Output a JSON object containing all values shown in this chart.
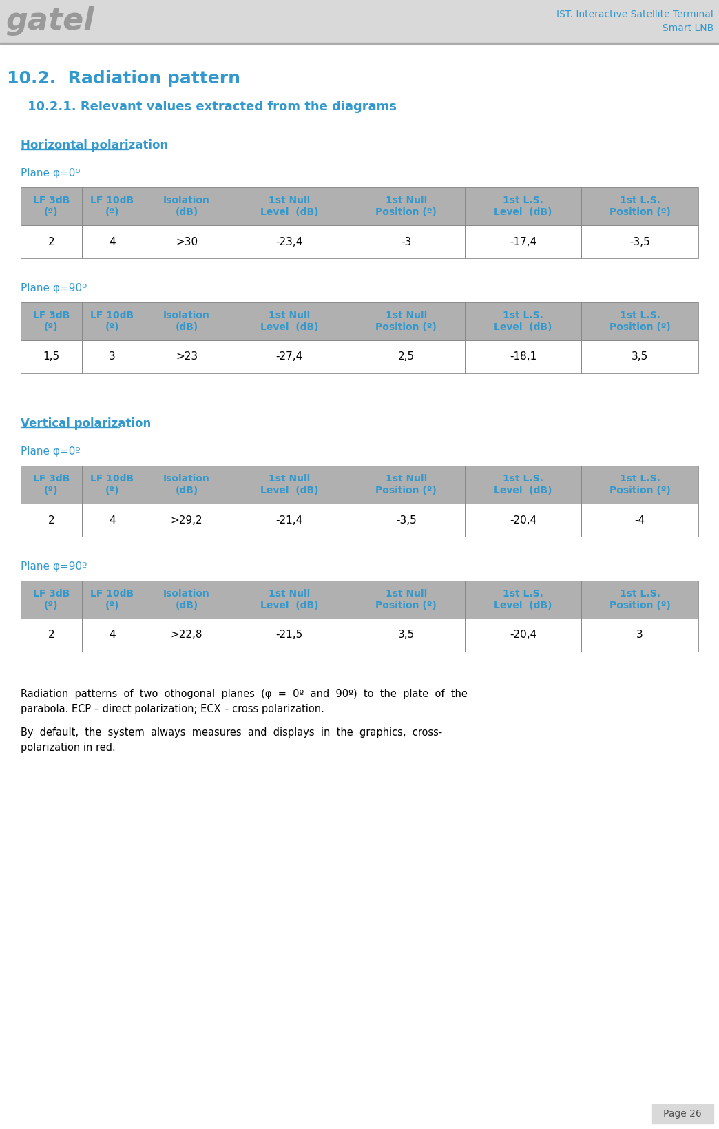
{
  "page_bg": "#ffffff",
  "header_bg": "#d9d9d9",
  "header_logo_text": "gatel",
  "header_logo_color": "#999999",
  "header_right_line1": "IST. Interactive Satellite Terminal",
  "header_right_line2": "Smart LNB",
  "header_right_color": "#3399cc",
  "title_h2": "10.2.  Radiation pattern",
  "title_h3": "10.2.1. Relevant values extracted from the diagrams",
  "section_color": "#3399cc",
  "underline_color": "#3399cc",
  "table_header_bg": "#b0b0b0",
  "table_header_text": "#3399cc",
  "table_row_bg": "#ffffff",
  "table_border_color": "#888888",
  "col_headers": [
    "LF 3dB\n(º)",
    "LF 10dB\n(º)",
    "Isolation\n(dB)",
    "1st Null\nLevel  (dB)",
    "1st Null\nPosition (º)",
    "1st L.S.\nLevel  (dB)",
    "1st L.S.\nPosition (º)"
  ],
  "sections": [
    {
      "label": "Horizontal polarization",
      "planes": [
        {
          "plane_label": "Plane φ=0º",
          "data_row": [
            "2",
            "4",
            ">30",
            "-23,4",
            "-3",
            "-17,4",
            "-3,5"
          ]
        },
        {
          "plane_label": "Plane φ=90º",
          "data_row": [
            "1,5",
            "3",
            ">23",
            "-27,4",
            "2,5",
            "-18,1",
            "3,5"
          ]
        }
      ]
    },
    {
      "label": "Vertical polarization",
      "planes": [
        {
          "plane_label": "Plane φ=0º",
          "data_row": [
            "2",
            "4",
            ">29,2",
            "-21,4",
            "-3,5",
            "-20,4",
            "-4"
          ]
        },
        {
          "plane_label": "Plane φ=90º",
          "data_row": [
            "2",
            "4",
            ">22,8",
            "-21,5",
            "3,5",
            "-20,4",
            "3"
          ]
        }
      ]
    }
  ],
  "footer_text1": "Radiation  patterns  of  two  othogonal  planes  (φ  =  0º  and  90º)  to  the  plate  of  the\nparabola. ECP – direct polarization; ECX – cross polarization.",
  "footer_text2": "By  default,  the  system  always  measures  and  displays  in  the  graphics,  cross-\npolarization in red.",
  "page_num": "Page 26",
  "page_num_bg": "#d9d9d9",
  "page_num_color": "#555555"
}
